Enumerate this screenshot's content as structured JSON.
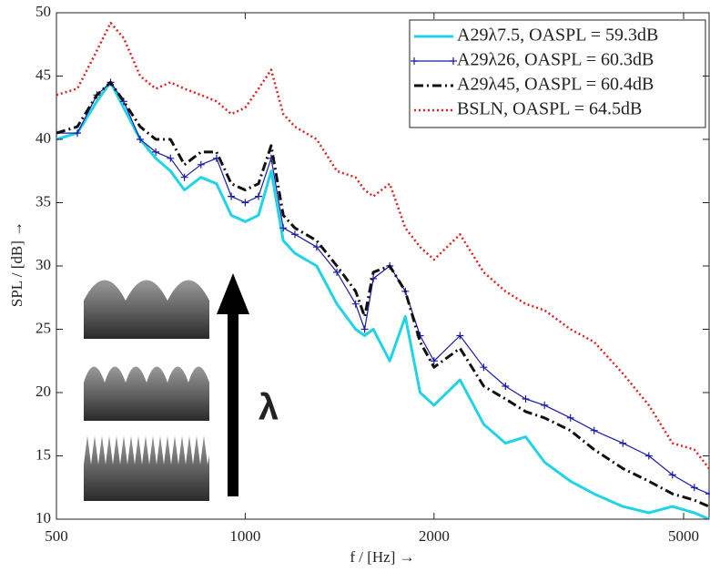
{
  "chart_data": {
    "type": "line",
    "x_label": "f / [Hz] →",
    "y_label": "SPL / [dB] →",
    "annotations": [
      "λ"
    ],
    "x": [
      500,
      540,
      580,
      610,
      640,
      680,
      720,
      760,
      800,
      850,
      900,
      950,
      1000,
      1050,
      1100,
      1150,
      1200,
      1300,
      1400,
      1500,
      1550,
      1600,
      1700,
      1800,
      1900,
      2000,
      2200,
      2400,
      2600,
      2800,
      3000,
      3300,
      3600,
      4000,
      4400,
      4800,
      5200,
      5490
    ],
    "series": [
      {
        "name": "A29λ7.5, OASPL = 59.3dB",
        "color": "#22d3e6",
        "linestyle": "solid",
        "linewidth": 3,
        "values": [
          40,
          40.5,
          43,
          44.5,
          42.5,
          40,
          38.5,
          37.5,
          36,
          37,
          36.5,
          34,
          33.5,
          34,
          37.5,
          32,
          31,
          30,
          27,
          25,
          24.5,
          25,
          22.5,
          26,
          20,
          19,
          21,
          17.5,
          16,
          16.5,
          14.5,
          13,
          12,
          11,
          10.5,
          11,
          10.5,
          10
        ]
      },
      {
        "name": "A29λ26, OASPL = 60.3dB",
        "color": "#1a1aa8",
        "linestyle": "solid",
        "linewidth": 1.2,
        "marker": "+",
        "values": [
          40.5,
          40.5,
          43.5,
          44.5,
          43,
          40,
          39,
          38.5,
          37,
          38,
          38.5,
          35.5,
          35,
          35.5,
          38.5,
          33,
          32.5,
          31.5,
          29.5,
          27,
          25,
          29,
          30,
          28,
          24.5,
          22.5,
          24.5,
          22,
          20.5,
          19.5,
          19,
          18,
          17,
          16,
          15,
          13.5,
          12.5,
          12
        ]
      },
      {
        "name": "A29λ45, OASPL = 60.4dB",
        "color": "#111111",
        "linestyle": "dashdot",
        "linewidth": 3,
        "values": [
          40.5,
          41,
          43.5,
          44.5,
          43,
          41,
          40,
          40,
          38,
          39,
          39,
          36.5,
          36,
          36.5,
          39.5,
          34,
          33,
          32,
          30,
          28,
          26,
          29.5,
          30,
          28,
          24,
          22,
          23.5,
          20.5,
          19.5,
          18.5,
          18,
          17,
          15.5,
          14,
          13,
          12,
          11.5,
          11
        ]
      },
      {
        "name": "BSLN, OASPL = 64.5dB",
        "color": "#e02020",
        "linestyle": "dotted",
        "linewidth": 2.5,
        "values": [
          43.5,
          44,
          47,
          49.2,
          48,
          45,
          44,
          44.5,
          44,
          43.5,
          43,
          42,
          42.5,
          44,
          45.5,
          42,
          41,
          40,
          37.5,
          37,
          36,
          35.5,
          36.5,
          33,
          31.5,
          30.5,
          32.5,
          29.5,
          28,
          27,
          26.5,
          25,
          24,
          21.5,
          19,
          16,
          15.5,
          14
        ]
      }
    ],
    "xscale": "log",
    "xlim": [
      500,
      5490
    ],
    "ylim": [
      10,
      50
    ],
    "xticks": [
      500,
      1000,
      2000,
      5000
    ],
    "yticks": [
      10,
      15,
      20,
      25,
      30,
      35,
      40,
      45,
      50
    ],
    "grid": false,
    "legend": "upper right"
  }
}
